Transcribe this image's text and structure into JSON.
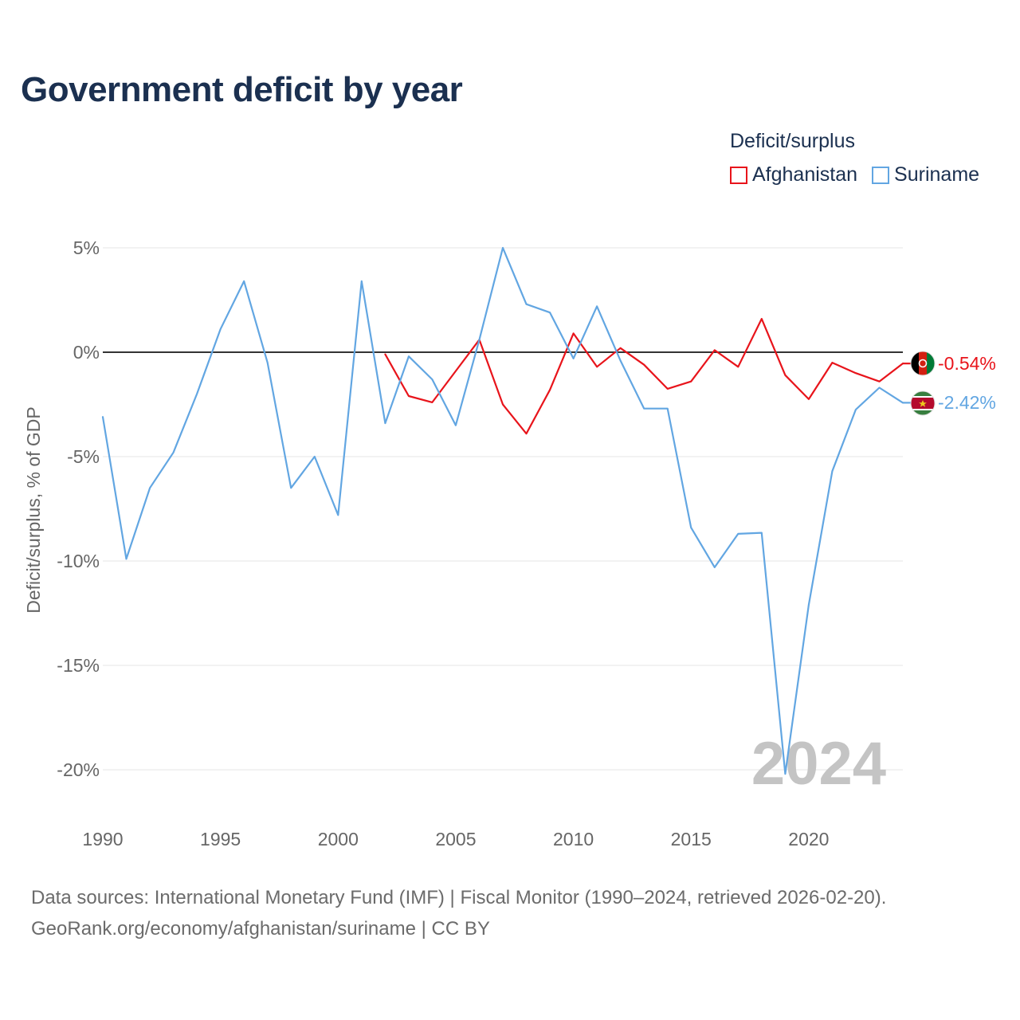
{
  "title": "Government deficit by year",
  "legend": {
    "title": "Deficit/surplus",
    "items": [
      {
        "label": "Afghanistan",
        "color": "#e8141b"
      },
      {
        "label": "Suriname",
        "color": "#62a6e2"
      }
    ]
  },
  "watermark_year": "2024",
  "footer": {
    "line1": "Data sources: International Monetary Fund (IMF) | Fiscal Monitor (1990–2024, retrieved 2026-02-20).",
    "line2": "GeoRank.org/economy/afghanistan/suriname | CC BY"
  },
  "chart_data": {
    "type": "line",
    "title": "Government deficit by year",
    "xlabel": "",
    "ylabel": "Deficit/surplus, % of GDP",
    "xlim": [
      1990,
      2024
    ],
    "ylim": [
      -21,
      5
    ],
    "x_ticks": [
      1990,
      1995,
      2000,
      2005,
      2010,
      2015,
      2020
    ],
    "x_tick_labels": [
      "1990",
      "1995",
      "2000",
      "2005",
      "2010",
      "2015",
      "2020"
    ],
    "y_ticks": [
      5,
      0,
      -5,
      -10,
      -15,
      -20
    ],
    "y_tick_labels": [
      "5%",
      "0%",
      "-5%",
      "-10%",
      "-15%",
      "-20%"
    ],
    "grid": true,
    "zero_line": true,
    "legend_position": "top-right",
    "series": [
      {
        "name": "Afghanistan",
        "color": "#e8141b",
        "end_label": "-0.54%",
        "points": [
          [
            2002,
            -0.1
          ],
          [
            2003,
            -2.1
          ],
          [
            2004,
            -2.4
          ],
          [
            2005,
            -0.9
          ],
          [
            2006,
            0.6
          ],
          [
            2007,
            -2.5
          ],
          [
            2008,
            -3.9
          ],
          [
            2009,
            -1.8
          ],
          [
            2010,
            0.9
          ],
          [
            2011,
            -0.7
          ],
          [
            2012,
            0.2
          ],
          [
            2013,
            -0.6
          ],
          [
            2014,
            -1.75
          ],
          [
            2015,
            -1.4
          ],
          [
            2016,
            0.1
          ],
          [
            2017,
            -0.7
          ],
          [
            2018,
            1.6
          ],
          [
            2019,
            -1.1
          ],
          [
            2020,
            -2.25
          ],
          [
            2021,
            -0.5
          ],
          [
            2022,
            -1.0
          ],
          [
            2023,
            -1.4
          ],
          [
            2024,
            -0.54
          ]
        ]
      },
      {
        "name": "Suriname",
        "color": "#62a6e2",
        "end_label": "-2.42%",
        "points": [
          [
            1990,
            -3.1
          ],
          [
            1991,
            -9.9
          ],
          [
            1992,
            -6.5
          ],
          [
            1993,
            -4.8
          ],
          [
            1994,
            -2.0
          ],
          [
            1995,
            1.1
          ],
          [
            1996,
            3.4
          ],
          [
            1997,
            -0.5
          ],
          [
            1998,
            -6.5
          ],
          [
            1999,
            -5.0
          ],
          [
            2000,
            -7.8
          ],
          [
            2001,
            3.4
          ],
          [
            2002,
            -3.4
          ],
          [
            2003,
            -0.2
          ],
          [
            2004,
            -1.3
          ],
          [
            2005,
            -3.5
          ],
          [
            2006,
            0.6
          ],
          [
            2007,
            5.0
          ],
          [
            2008,
            2.3
          ],
          [
            2009,
            1.9
          ],
          [
            2010,
            -0.3
          ],
          [
            2011,
            2.2
          ],
          [
            2012,
            -0.4
          ],
          [
            2013,
            -2.7
          ],
          [
            2014,
            -2.7
          ],
          [
            2015,
            -8.4
          ],
          [
            2016,
            -10.3
          ],
          [
            2017,
            -8.7
          ],
          [
            2018,
            -8.65
          ],
          [
            2019,
            -20.2
          ],
          [
            2020,
            -12.1
          ],
          [
            2021,
            -5.7
          ],
          [
            2022,
            -2.75
          ],
          [
            2023,
            -1.7
          ],
          [
            2024,
            -2.42
          ]
        ]
      }
    ]
  }
}
